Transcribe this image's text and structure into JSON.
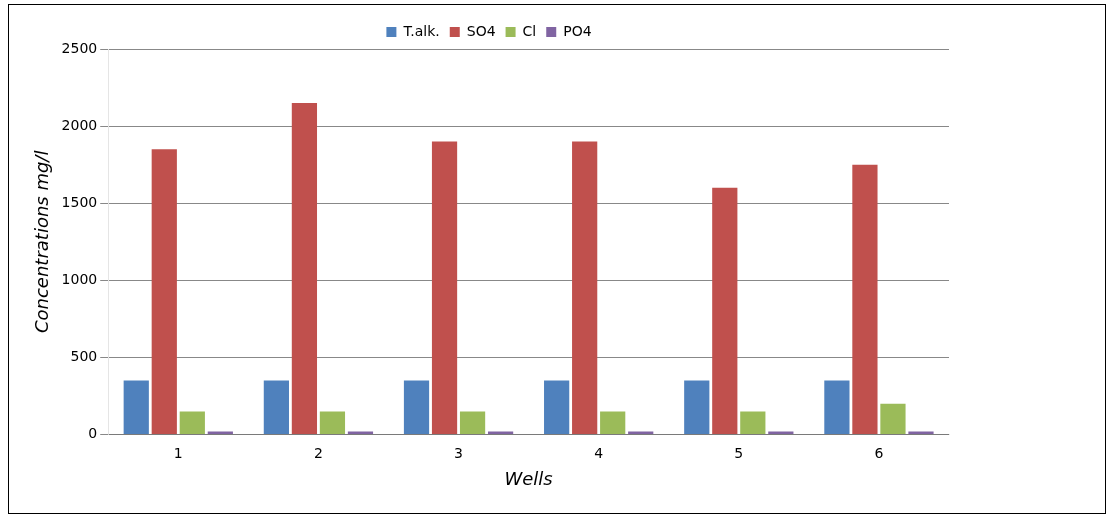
{
  "chart_data": {
    "type": "bar",
    "xlabel": "Wells",
    "ylabel": "Concentrations mg/l",
    "categories": [
      "1",
      "2",
      "3",
      "4",
      "5",
      "6"
    ],
    "series": [
      {
        "name": "T.alk.",
        "color": "#4f81bd",
        "values": [
          350,
          350,
          350,
          350,
          350,
          350
        ]
      },
      {
        "name": "SO4",
        "color": "#c0504d",
        "values": [
          1850,
          2150,
          1900,
          1900,
          1600,
          1750
        ]
      },
      {
        "name": "Cl",
        "color": "#9bbb59",
        "values": [
          150,
          150,
          150,
          150,
          150,
          200
        ]
      },
      {
        "name": "PO4",
        "color": "#8064a2",
        "values": [
          20,
          20,
          20,
          20,
          20,
          20
        ]
      }
    ],
    "ylim": [
      0,
      2500
    ],
    "yticks": [
      0,
      500,
      1000,
      1500,
      2000,
      2500
    ],
    "grid": "y",
    "legend": "top"
  }
}
